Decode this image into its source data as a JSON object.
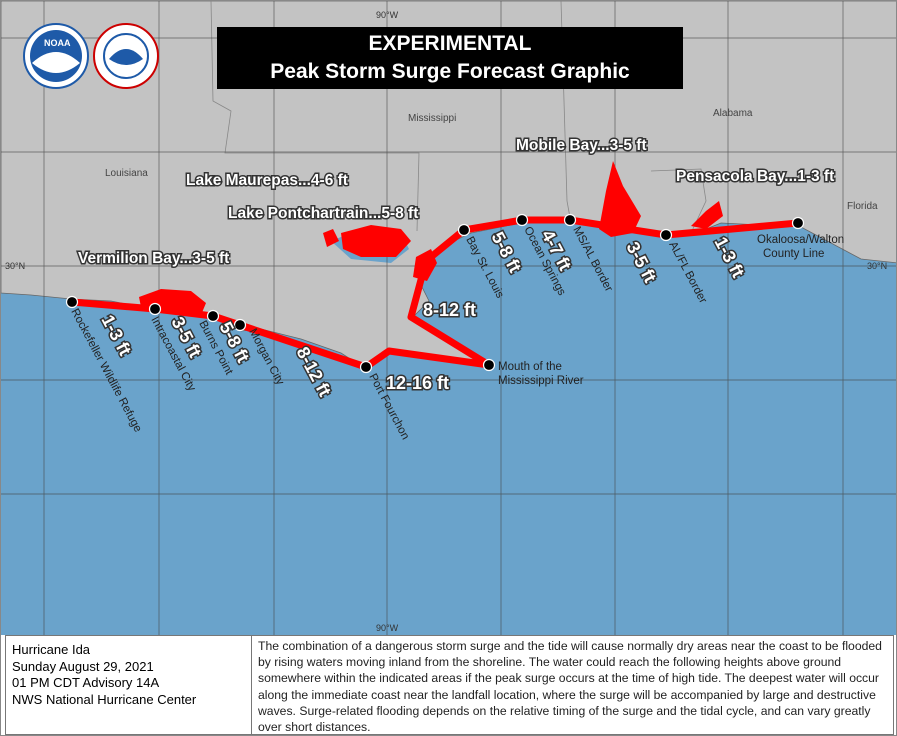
{
  "header": {
    "title_line1": "EXPERIMENTAL",
    "title_line2": "Peak Storm Surge Forecast Graphic"
  },
  "logos": {
    "noaa": "NOAA",
    "nws": "NATIONAL WEATHER SERVICE"
  },
  "graticule": {
    "lon_label": "90°W",
    "lat_label": "30°N"
  },
  "states": [
    "Louisiana",
    "Mississippi",
    "Alabama",
    "Florida"
  ],
  "bays": [
    "Lake Maurepas...4-6 ft",
    "Lake Pontchartrain...5-8 ft",
    "Vermilion Bay...3-5 ft",
    "Mobile Bay...3-5 ft",
    "Pensacola Bay...1-3 ft"
  ],
  "segments": [
    "1-3 ft",
    "3-5 ft",
    "5-8 ft",
    "8-12 ft",
    "12-16 ft",
    "8-12 ft",
    "5-8 ft",
    "4-7 ft",
    "3-5 ft",
    "1-3 ft"
  ],
  "locations": [
    "Rockefeller Wildlife Refuge",
    "Intracoastal City",
    "Burns Point",
    "Morgan City",
    "Port Fourchon",
    "Mouth of the",
    "Mississippi River",
    "Bay St. Louis",
    "Ocean Springs",
    "MS/AL Border",
    "AL/FL Border",
    "Okaloosa/Walton",
    "County Line"
  ],
  "colors": {
    "water": "#6aa3cb",
    "land": "#c3c3c3",
    "surge": "#ff0000"
  },
  "info": {
    "storm": "Hurricane Ida",
    "date": "Sunday August 29, 2021",
    "advisory": "01 PM CDT Advisory 14A",
    "office": "NWS National Hurricane Center",
    "description": "The combination of a dangerous storm surge and the tide will cause normally dry areas near the coast to be flooded by rising waters moving inland from the shoreline.  The water could reach the following heights above ground somewhere within the indicated areas if the peak surge occurs at the time of high tide.  The deepest water will occur along the immediate coast near the landfall location, where the surge will be accompanied by large and destructive waves.  Surge-related flooding depends on the relative timing of the surge and the tidal cycle, and can vary greatly over short distances."
  }
}
